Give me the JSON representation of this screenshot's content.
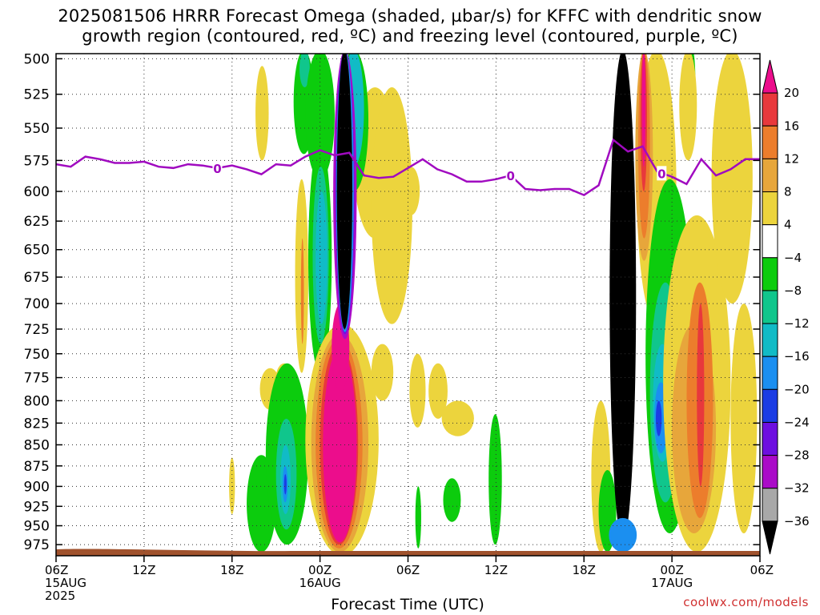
{
  "title_line1": "2025081506 HRRR Forecast Omega (shaded, µbar/s) for KFFC with dendritic snow",
  "title_line2": "growth region (contoured, red, ºC) and freezing level (contoured, purple, ºC)",
  "credit": "coolwx.com/models",
  "chart_data": {
    "type": "heatmap",
    "title": "2025081506 HRRR Forecast Omega (shaded, µbar/s) for KFFC with dendritic snow growth region (contoured, red, ºC) and freezing level (contoured, purple, ºC)",
    "xlabel": "Forecast Time (UTC)",
    "ylabel": "",
    "x_ticks": [
      {
        "hour": 0,
        "lines": [
          "06Z",
          "15AUG",
          "2025"
        ]
      },
      {
        "hour": 6,
        "lines": [
          "12Z"
        ]
      },
      {
        "hour": 12,
        "lines": [
          "18Z"
        ]
      },
      {
        "hour": 18,
        "lines": [
          "00Z",
          "16AUG"
        ]
      },
      {
        "hour": 24,
        "lines": [
          "06Z"
        ]
      },
      {
        "hour": 30,
        "lines": [
          "12Z"
        ]
      },
      {
        "hour": 36,
        "lines": [
          "18Z"
        ]
      },
      {
        "hour": 42,
        "lines": [
          "00Z",
          "17AUG"
        ]
      },
      {
        "hour": 48,
        "lines": [
          "06Z"
        ]
      }
    ],
    "xlim_hours": [
      0,
      48
    ],
    "y_ticks_hpa": [
      500,
      525,
      550,
      575,
      600,
      625,
      650,
      675,
      700,
      725,
      750,
      775,
      800,
      825,
      850,
      875,
      900,
      925,
      950,
      975
    ],
    "ylim_hpa": [
      995,
      494
    ],
    "y_scale": "log-pressure",
    "grid": true,
    "colorbar": {
      "ticks": [
        "20",
        "16",
        "12",
        "8",
        "4",
        "−4",
        "−8",
        "−12",
        "−16",
        "−20",
        "−24",
        "−28",
        "−32",
        "−36"
      ],
      "levels": [
        {
          "min": 20,
          "color": "#ec0d8c"
        },
        {
          "min": 16,
          "max": 20,
          "color": "#e8383c"
        },
        {
          "min": 12,
          "max": 16,
          "color": "#ec7d2c"
        },
        {
          "min": 8,
          "max": 12,
          "color": "#e7a63b"
        },
        {
          "min": 4,
          "max": 8,
          "color": "#ecd43d"
        },
        {
          "min": -4,
          "max": 4,
          "color": "#ffffff"
        },
        {
          "min": -8,
          "max": -4,
          "color": "#0ccc0d"
        },
        {
          "min": -12,
          "max": -8,
          "color": "#10c68c"
        },
        {
          "min": -16,
          "max": -12,
          "color": "#11bbc6"
        },
        {
          "min": -20,
          "max": -16,
          "color": "#1b8ff0"
        },
        {
          "min": -24,
          "max": -20,
          "color": "#1b3ce4"
        },
        {
          "min": -28,
          "max": -24,
          "color": "#6d0fe0"
        },
        {
          "min": -32,
          "max": -28,
          "color": "#aa0bc8"
        },
        {
          "min": -36,
          "max": -32,
          "color": "#a8a8a8"
        },
        {
          "max": -36,
          "color": "#000000"
        }
      ]
    },
    "freezing_level": {
      "label": "0",
      "color": "#a00ac0",
      "points": [
        [
          0,
          578
        ],
        [
          1,
          580
        ],
        [
          2,
          572
        ],
        [
          3,
          574
        ],
        [
          4,
          577
        ],
        [
          5,
          577
        ],
        [
          6,
          576
        ],
        [
          7,
          580
        ],
        [
          8,
          581
        ],
        [
          9,
          578
        ],
        [
          10,
          579
        ],
        [
          11,
          581
        ],
        [
          12,
          579
        ],
        [
          13,
          582
        ],
        [
          14,
          586
        ],
        [
          15,
          578
        ],
        [
          16,
          579
        ],
        [
          17,
          572
        ],
        [
          18,
          567
        ],
        [
          19,
          571
        ],
        [
          20,
          569
        ],
        [
          21,
          587
        ],
        [
          22,
          589
        ],
        [
          23,
          588
        ],
        [
          24,
          581
        ],
        [
          25,
          574
        ],
        [
          26,
          582
        ],
        [
          27,
          586
        ],
        [
          28,
          592
        ],
        [
          29,
          592
        ],
        [
          30,
          590
        ],
        [
          31,
          587
        ],
        [
          32,
          598
        ],
        [
          33,
          599
        ],
        [
          34,
          598
        ],
        [
          35,
          598
        ],
        [
          36,
          603
        ],
        [
          37,
          595
        ],
        [
          38,
          559
        ],
        [
          39,
          568
        ],
        [
          40,
          564
        ],
        [
          41,
          584
        ],
        [
          42,
          588
        ],
        [
          43,
          594
        ],
        [
          44,
          574
        ],
        [
          45,
          587
        ],
        [
          46,
          582
        ],
        [
          47,
          574
        ],
        [
          48,
          574
        ]
      ],
      "label_hours": [
        11,
        31,
        41.3
      ]
    },
    "omega_regions": [
      {
        "name": "max-downward-core-16aug-00z",
        "level": ">20",
        "color": "#ec0d8c",
        "hour_range": [
          18,
          21
        ],
        "p_range": [
          740,
          985
        ]
      },
      {
        "name": "max-upward-core-16aug-03z",
        "level": "<-36",
        "color": "#000000",
        "hour_range": [
          19.3,
          20.2
        ],
        "p_range": [
          494,
          725
        ]
      },
      {
        "name": "max-upward-core-16aug-20z",
        "level": "<-36",
        "color": "#000000",
        "hour_range": [
          37.8,
          39.5
        ],
        "p_range": [
          494,
          970
        ]
      },
      {
        "name": "downward-max-17aug-02z",
        "level": "16-20",
        "color": "#e8383c",
        "hour_range": [
          43.8,
          44.1
        ],
        "p_range": [
          700,
          880
        ]
      }
    ],
    "terrain": {
      "color": "#a0522d",
      "surface_hpa": 988
    }
  }
}
